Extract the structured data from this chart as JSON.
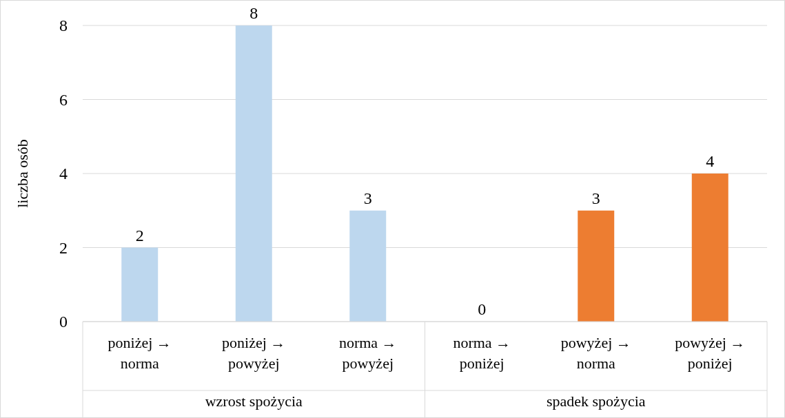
{
  "chart_data": {
    "type": "bar",
    "ylabel": "liczba osób",
    "categories": [
      "poniżej → norma",
      "poniżej → powyżej",
      "norma → powyżej",
      "norma → poniżej",
      "powyżej → norma",
      "powyżej → poniżej"
    ],
    "values": [
      2,
      8,
      3,
      0,
      3,
      4
    ],
    "colors": [
      "#bdd7ee",
      "#bdd7ee",
      "#bdd7ee",
      "#ed7d31",
      "#ed7d31",
      "#ed7d31"
    ],
    "ylim": [
      0,
      8
    ],
    "yticks": [
      0,
      2,
      4,
      6,
      8
    ],
    "grid": "y",
    "data_labels": true,
    "annotations": [
      "wzrost spożycia",
      "spadek spożycia"
    ]
  }
}
